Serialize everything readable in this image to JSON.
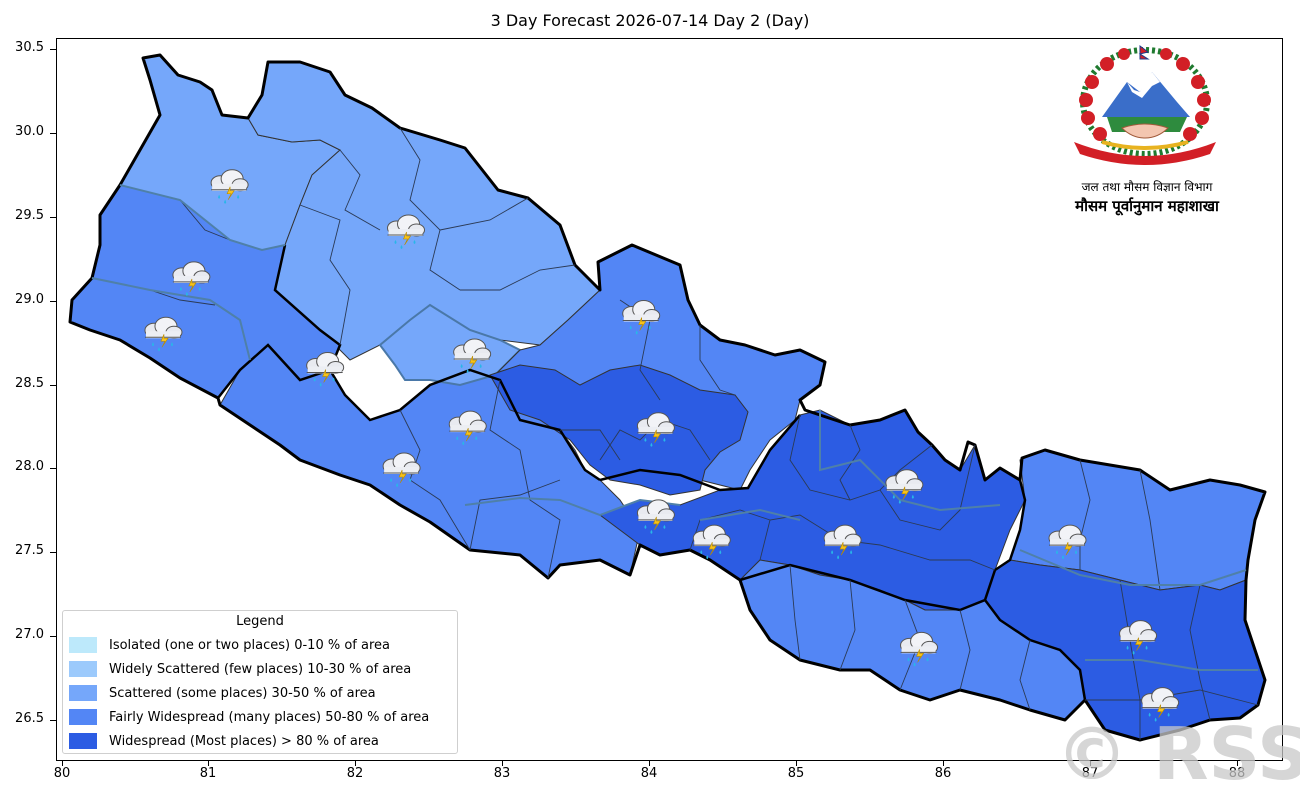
{
  "title": "3 Day Forecast 2026-07-14 Day 2 (Day)",
  "axes": {
    "x_ticks": [
      "80",
      "81",
      "82",
      "83",
      "84",
      "85",
      "86",
      "87",
      "88"
    ],
    "y_ticks": [
      "30.5",
      "30.0",
      "29.5",
      "29.0",
      "28.5",
      "28.0",
      "27.5",
      "27.0",
      "26.5"
    ],
    "xlim": [
      79.95,
      88.3
    ],
    "ylim": [
      26.25,
      30.55
    ]
  },
  "header": {
    "department": "जल तथा मौसम विज्ञान विभाग",
    "division": "मौसम पूर्वानुमान महाशाखा"
  },
  "legend": {
    "title": "Legend",
    "items": [
      {
        "label": "Isolated (one or two places)  0-10 % of area",
        "color": "#bde9fb"
      },
      {
        "label": "Widely Scattered (few places)  10-30 % of area",
        "color": "#9ccafc"
      },
      {
        "label": "Scattered (some places)  30-50 % of area",
        "color": "#75a7fa"
      },
      {
        "label": "Fairly Widespread (many places)  50-80 % of area",
        "color": "#5386f5"
      },
      {
        "label": "Widespread (Most places) > 80 % of area",
        "color": "#2c5ce3"
      }
    ]
  },
  "watermark": "© RSS",
  "map_data": {
    "icon": "thunderstorm-rain-icon",
    "regions": [
      {
        "name": "far-west-northern",
        "category": "Scattered"
      },
      {
        "name": "karnali-northern",
        "category": "Scattered"
      },
      {
        "name": "far-west-southern",
        "category": "Fairly Widespread"
      },
      {
        "name": "karnali-southern",
        "category": "Fairly Widespread"
      },
      {
        "name": "lumbini",
        "category": "Fairly Widespread"
      },
      {
        "name": "gandaki",
        "category": "Fairly Widespread"
      },
      {
        "name": "gandaki-central",
        "category": "Widespread"
      },
      {
        "name": "bagmati-west",
        "category": "Widespread"
      },
      {
        "name": "bagmati-east",
        "category": "Widespread"
      },
      {
        "name": "madhesh",
        "category": "Fairly Widespread"
      },
      {
        "name": "koshi-north",
        "category": "Fairly Widespread"
      },
      {
        "name": "koshi-south",
        "category": "Widespread"
      }
    ],
    "icon_locations": [
      {
        "lon": 81.13,
        "lat": 29.69
      },
      {
        "lon": 80.87,
        "lat": 29.14
      },
      {
        "lon": 80.68,
        "lat": 28.81
      },
      {
        "lon": 82.33,
        "lat": 29.42
      },
      {
        "lon": 81.78,
        "lat": 28.6
      },
      {
        "lon": 82.78,
        "lat": 28.68
      },
      {
        "lon": 82.75,
        "lat": 28.25
      },
      {
        "lon": 82.3,
        "lat": 28.0
      },
      {
        "lon": 83.93,
        "lat": 28.91
      },
      {
        "lon": 84.03,
        "lat": 28.24
      },
      {
        "lon": 84.03,
        "lat": 27.72
      },
      {
        "lon": 84.41,
        "lat": 27.57
      },
      {
        "lon": 85.3,
        "lat": 27.57
      },
      {
        "lon": 85.72,
        "lat": 27.9
      },
      {
        "lon": 86.83,
        "lat": 27.57
      },
      {
        "lon": 87.31,
        "lat": 27.0
      },
      {
        "lon": 87.46,
        "lat": 26.6
      },
      {
        "lon": 85.82,
        "lat": 26.93
      }
    ]
  }
}
